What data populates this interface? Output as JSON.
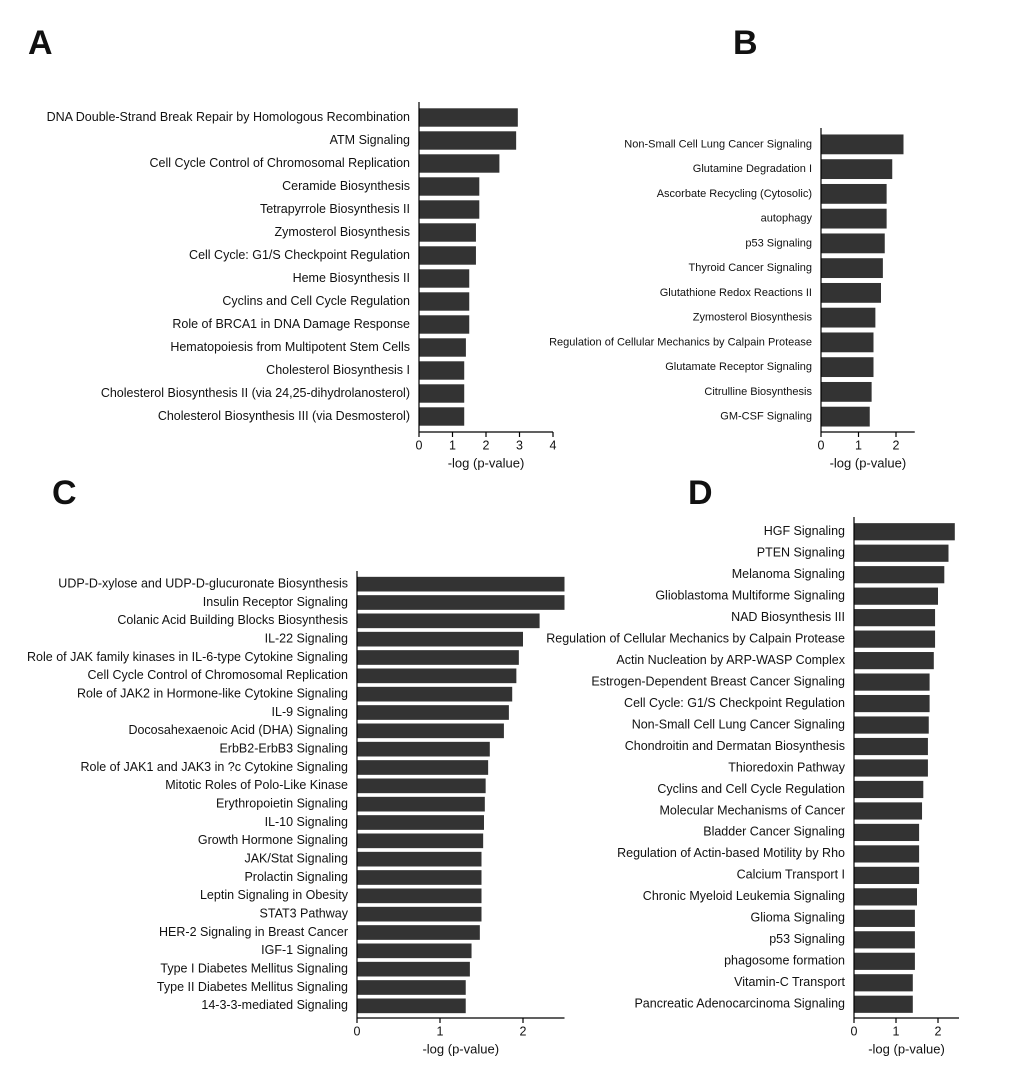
{
  "chart_data": [
    {
      "type": "bar",
      "orientation": "horizontal",
      "title": "A",
      "x_label": "-log (p-value)",
      "color": "#333333",
      "categories": [
        "DNA Double-Strand Break Repair by Homologous Recombination",
        "ATM Signaling",
        "Cell Cycle Control of Chromosomal Replication",
        "Ceramide Biosynthesis",
        "Tetrapyrrole Biosynthesis II",
        "Zymosterol Biosynthesis",
        "Cell Cycle: G1/S Checkpoint Regulation",
        "Heme Biosynthesis II",
        "Cyclins and Cell Cycle Regulation",
        "Role of BRCA1 in DNA Damage Response",
        "Hematopoiesis from Multipotent Stem Cells",
        "Cholesterol Biosynthesis I",
        "Cholesterol Biosynthesis II (via 24,25-dihydrolanosterol)",
        "Cholesterol Biosynthesis III (via Desmosterol)"
      ],
      "values": [
        2.95,
        2.9,
        2.4,
        1.8,
        1.8,
        1.7,
        1.7,
        1.5,
        1.5,
        1.5,
        1.4,
        1.35,
        1.35,
        1.35
      ],
      "xlim": [
        0,
        4
      ],
      "xticks": [
        0,
        1,
        2,
        3,
        4
      ]
    },
    {
      "type": "bar",
      "orientation": "horizontal",
      "title": "B",
      "x_label": "-log (p-value)",
      "color": "#333333",
      "categories": [
        "Non-Small Cell Lung Cancer Signaling",
        "Glutamine Degradation I",
        "Ascorbate Recycling (Cytosolic)",
        "autophagy",
        "p53 Signaling",
        "Thyroid Cancer Signaling",
        "Glutathione Redox Reactions II",
        "Zymosterol Biosynthesis",
        "Regulation of Cellular Mechanics by Calpain Protease",
        "Glutamate Receptor Signaling",
        "Citrulline Biosynthesis",
        "GM-CSF Signaling"
      ],
      "values": [
        2.2,
        1.9,
        1.75,
        1.75,
        1.7,
        1.65,
        1.6,
        1.45,
        1.4,
        1.4,
        1.35,
        1.3
      ],
      "xlim": [
        0,
        2.5
      ],
      "xticks": [
        0,
        1,
        2
      ]
    },
    {
      "type": "bar",
      "orientation": "horizontal",
      "title": "C",
      "x_label": "-log (p-value)",
      "color": "#333333",
      "categories": [
        "UDP-D-xylose and UDP-D-glucuronate Biosynthesis",
        "Insulin Receptor Signaling",
        "Colanic Acid Building Blocks Biosynthesis",
        "IL-22 Signaling",
        "Role of JAK family kinases in IL-6-type Cytokine Signaling",
        "Cell Cycle Control of Chromosomal Replication",
        "Role of JAK2 in Hormone-like Cytokine Signaling",
        "IL-9 Signaling",
        "Docosahexaenoic Acid (DHA) Signaling",
        "ErbB2-ErbB3 Signaling",
        "Role of JAK1 and JAK3 in ?c Cytokine Signaling",
        "Mitotic Roles of Polo-Like Kinase",
        "Erythropoietin Signaling",
        "IL-10 Signaling",
        "Growth Hormone Signaling",
        "JAK/Stat Signaling",
        "Prolactin Signaling",
        "Leptin Signaling in Obesity",
        "STAT3 Pathway",
        "HER-2 Signaling in Breast Cancer",
        "IGF-1 Signaling",
        "Type I Diabetes Mellitus Signaling",
        "Type II Diabetes Mellitus Signaling",
        "14-3-3-mediated Signaling"
      ],
      "values": [
        2.5,
        2.5,
        2.2,
        2.0,
        1.95,
        1.92,
        1.87,
        1.83,
        1.77,
        1.6,
        1.58,
        1.55,
        1.54,
        1.53,
        1.52,
        1.5,
        1.5,
        1.5,
        1.5,
        1.48,
        1.38,
        1.36,
        1.31,
        1.31
      ],
      "xlim": [
        0,
        2.5
      ],
      "xticks": [
        0,
        1,
        2
      ]
    },
    {
      "type": "bar",
      "orientation": "horizontal",
      "title": "D",
      "x_label": "-log (p-value)",
      "color": "#333333",
      "categories": [
        "HGF Signaling",
        "PTEN Signaling",
        "Melanoma Signaling",
        "Glioblastoma Multiforme Signaling",
        "NAD Biosynthesis III",
        "Regulation of Cellular Mechanics by Calpain Protease",
        "Actin Nucleation by ARP-WASP Complex",
        "Estrogen-Dependent Breast Cancer Signaling",
        "Cell Cycle: G1/S Checkpoint Regulation",
        "Non-Small Cell Lung Cancer Signaling",
        "Chondroitin and Dermatan Biosynthesis",
        "Thioredoxin Pathway",
        "Cyclins and Cell Cycle Regulation",
        "Molecular Mechanisms of Cancer",
        "Bladder Cancer Signaling",
        "Regulation of Actin-based Motility by Rho",
        "Calcium Transport I",
        "Chronic Myeloid Leukemia Signaling",
        "Glioma Signaling",
        "p53 Signaling",
        "phagosome formation",
        "Vitamin-C Transport",
        "Pancreatic Adenocarcinoma Signaling"
      ],
      "values": [
        2.4,
        2.25,
        2.15,
        2.0,
        1.93,
        1.93,
        1.9,
        1.8,
        1.8,
        1.78,
        1.76,
        1.76,
        1.65,
        1.62,
        1.55,
        1.55,
        1.55,
        1.5,
        1.45,
        1.45,
        1.45,
        1.4,
        1.4
      ],
      "xlim": [
        0,
        2.5
      ],
      "xticks": [
        0,
        1,
        2
      ]
    }
  ]
}
